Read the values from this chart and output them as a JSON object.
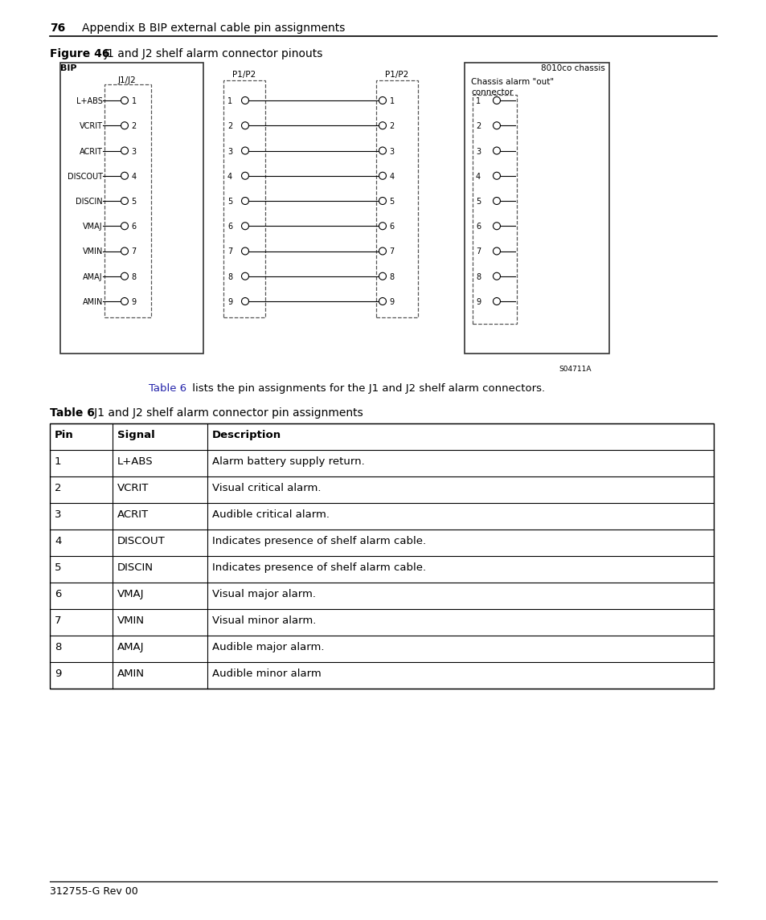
{
  "page_header_num": "76",
  "page_header_text": "Appendix B BIP external cable pin assignments",
  "figure_label": "Figure 46",
  "figure_title": "J1 and J2 shelf alarm connector pinouts",
  "bip_label": "BIP",
  "chassis_label": "8010co chassis",
  "chassis_alarm_line1": "Chassis alarm \"out\"",
  "chassis_alarm_line2": "connector",
  "j1j2_label": "J1/J2",
  "p1p2_left_label": "P1/P2",
  "p1p2_right_label": "P1/P2",
  "pin_signals": [
    "L+ABS",
    "VCRIT",
    "ACRIT",
    "DISCOUT",
    "DISCIN",
    "VMAJ",
    "VMIN",
    "AMAJ",
    "AMIN"
  ],
  "pin_numbers": [
    "1",
    "2",
    "3",
    "4",
    "5",
    "6",
    "7",
    "8",
    "9"
  ],
  "image_id": "S04711A",
  "ref_text": "Table 6",
  "ref_sentence": " lists the pin assignments for the J1 and J2 shelf alarm connectors.",
  "table_label": "Table 6",
  "table_title": "   J1 and J2 shelf alarm connector pin assignments",
  "table_headers": [
    "Pin",
    "Signal",
    "Description"
  ],
  "table_data": [
    [
      "1",
      "L+ABS",
      "Alarm battery supply return."
    ],
    [
      "2",
      "VCRIT",
      "Visual critical alarm."
    ],
    [
      "3",
      "ACRIT",
      "Audible critical alarm."
    ],
    [
      "4",
      "DISCOUT",
      "Indicates presence of shelf alarm cable."
    ],
    [
      "5",
      "DISCIN",
      "Indicates presence of shelf alarm cable."
    ],
    [
      "6",
      "VMAJ",
      "Visual major alarm."
    ],
    [
      "7",
      "VMIN",
      "Visual minor alarm."
    ],
    [
      "8",
      "AMAJ",
      "Audible major alarm."
    ],
    [
      "9",
      "AMIN",
      "Audible minor alarm"
    ]
  ],
  "footer_text": "312755-G Rev 00",
  "bg_color": "#ffffff",
  "text_color": "#000000",
  "table_ref_color": "#2222aa",
  "border_color": "#000000"
}
